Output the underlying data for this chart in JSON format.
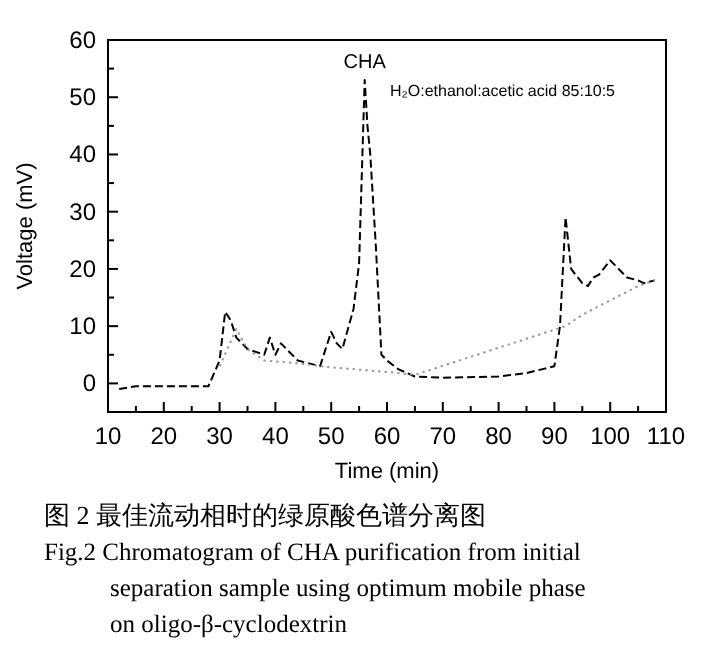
{
  "chart_data": {
    "type": "line",
    "xlabel": "Time (min)",
    "ylabel": "Voltage (mV)",
    "xlim": [
      10,
      110
    ],
    "ylim": [
      -5,
      60
    ],
    "xticks": [
      10,
      {
        "value": 15,
        "label": null
      },
      20,
      {
        "value": 25,
        "label": null
      },
      30,
      {
        "value": 35,
        "label": null
      },
      40,
      {
        "value": 45,
        "label": null
      },
      50,
      {
        "value": 55,
        "label": null
      },
      60,
      {
        "value": 65,
        "label": null
      },
      70,
      {
        "value": 75,
        "label": null
      },
      80,
      {
        "value": 85,
        "label": null
      },
      90,
      {
        "value": 95,
        "label": null
      },
      100,
      {
        "value": 105,
        "label": null
      },
      110
    ],
    "yticks": [
      0,
      {
        "value": 5,
        "label": null
      },
      10,
      {
        "value": 15,
        "label": null
      },
      20,
      {
        "value": 25,
        "label": null
      },
      30,
      {
        "value": 35,
        "label": null
      },
      40,
      {
        "value": 45,
        "label": null
      },
      50,
      {
        "value": 55,
        "label": null
      },
      60
    ],
    "grid": false,
    "marker": "none",
    "series": [
      {
        "color": "#000000",
        "line_style": "dashed",
        "x": [
          12,
          15,
          28,
          30,
          31,
          32,
          33,
          35,
          38,
          39,
          40,
          41,
          44,
          48,
          50,
          51,
          52,
          54,
          55,
          55.5,
          56,
          56.5,
          57,
          57.5,
          58,
          59,
          60,
          62,
          65,
          70,
          80,
          85,
          90,
          91,
          92,
          93,
          95,
          96,
          97,
          98,
          100,
          101,
          103,
          105,
          106,
          108
        ],
        "values": [
          -1,
          -0.5,
          -0.5,
          4,
          12.5,
          11,
          8,
          6,
          5,
          8,
          5,
          7,
          4,
          3,
          9,
          7,
          6,
          13,
          21,
          37,
          53,
          45,
          40,
          32,
          24,
          5,
          4,
          2.5,
          1.2,
          1,
          1.2,
          1.8,
          3,
          10,
          29,
          20,
          17.5,
          17,
          18.5,
          19,
          21.5,
          20.5,
          18.5,
          18,
          17.5,
          18
        ]
      },
      {
        "color": "#999999",
        "line_style": "dotted",
        "x": [
          30,
          33,
          35,
          38,
          44,
          50,
          60,
          65,
          92,
          95,
          100,
          105,
          108
        ],
        "values": [
          3,
          9.5,
          6,
          4,
          3.5,
          2.8,
          2,
          1.5,
          10,
          12,
          14.5,
          17,
          18
        ]
      }
    ],
    "annotations": [
      {
        "text": "CHA",
        "x": 56,
        "y": 53
      },
      "H₂O:ethanol:acetic acid 85:10:5",
      "图 2  最佳流动相时的绿原酸色谱分离图",
      "Fig.2 Chromatogram of CHA purification from initial",
      "separation sample using optimum mobile phase",
      "on oligo-β-cyclodextrin"
    ]
  }
}
